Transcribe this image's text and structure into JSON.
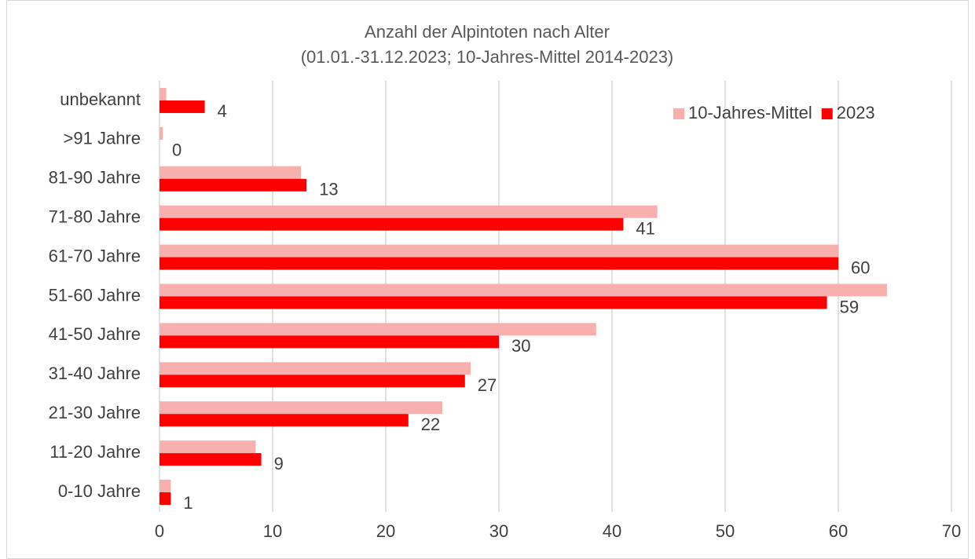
{
  "chart_data": {
    "type": "bar",
    "orientation": "horizontal",
    "title": "Anzahl der Alpintoten nach Alter",
    "subtitle": "(01.01.-31.12.2023; 10-Jahres-Mittel 2014-2023)",
    "categories": [
      "unbekannt",
      ">91 Jahre",
      "81-90 Jahre",
      "71-80 Jahre",
      "61-70 Jahre",
      "51-60 Jahre",
      "41-50 Jahre",
      "31-40 Jahre",
      "21-30 Jahre",
      "11-20 Jahre",
      "0-10 Jahre"
    ],
    "series": [
      {
        "name": "10-Jahres-Mittel",
        "color": "#f8b0ae",
        "values": [
          0.6,
          0.3,
          12.5,
          44.0,
          60.0,
          64.3,
          38.6,
          27.5,
          25.0,
          8.5,
          1.0
        ]
      },
      {
        "name": "2023",
        "color": "#ff0000",
        "values": [
          4,
          0,
          13,
          41,
          60,
          59,
          30,
          27,
          22,
          9,
          1
        ],
        "data_labels": true
      }
    ],
    "xlim": [
      0,
      70
    ],
    "xticks": [
      0,
      10,
      20,
      30,
      40,
      50,
      60,
      70
    ],
    "grid": true,
    "legend": "top-right"
  }
}
